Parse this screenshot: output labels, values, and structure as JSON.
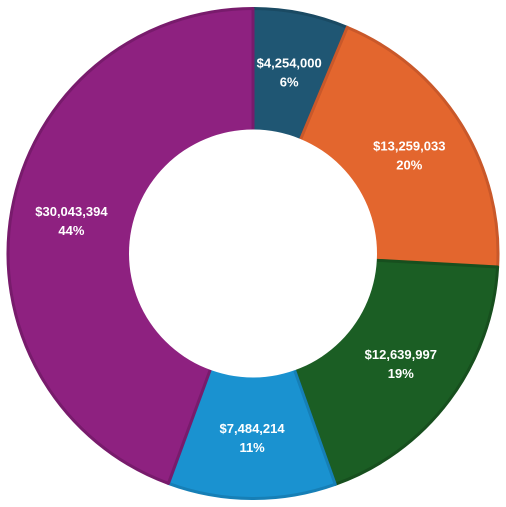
{
  "chart_data": {
    "type": "pie",
    "variant": "donut",
    "title": "",
    "legend": "none",
    "slices": [
      {
        "value": 4254000,
        "value_label": "$4,254,000",
        "percent_label": "6%",
        "color": "#1f5673",
        "border": "#1a4a63"
      },
      {
        "value": 13259033,
        "value_label": "$13,259,033",
        "percent_label": "20%",
        "color": "#e3662e",
        "border": "#c9582a"
      },
      {
        "value": 12639997,
        "value_label": "$12,639,997",
        "percent_label": "19%",
        "color": "#1b5e24",
        "border": "#174f1e"
      },
      {
        "value": 7484214,
        "value_label": "$7,484,214",
        "percent_label": "11%",
        "color": "#1a92d0",
        "border": "#167fb6"
      },
      {
        "value": 30043394,
        "value_label": "$30,043,394",
        "percent_label": "44%",
        "color": "#8e2180",
        "border": "#781b6c"
      }
    ]
  }
}
